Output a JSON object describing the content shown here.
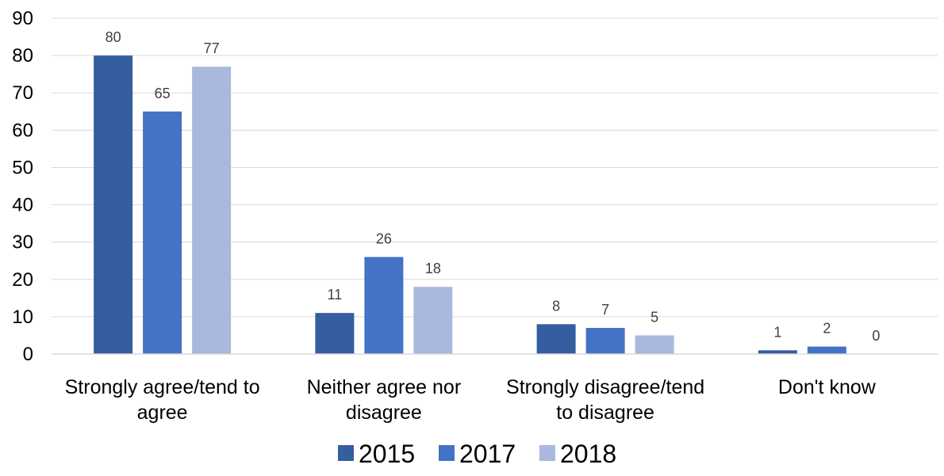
{
  "chart_data": {
    "type": "bar",
    "title": "",
    "xlabel": "",
    "ylabel": "",
    "ylim": [
      0,
      90
    ],
    "yticks": [
      0,
      10,
      20,
      30,
      40,
      50,
      60,
      70,
      80,
      90
    ],
    "grid": true,
    "legend": "bottom",
    "categories": [
      [
        "Strongly agree/tend to",
        "agree"
      ],
      [
        "Neither agree nor",
        "disagree"
      ],
      [
        "Strongly disagree/tend",
        "to disagree"
      ],
      [
        "Don't know"
      ]
    ],
    "series": [
      {
        "name": "2015",
        "color": "#355ea0",
        "values": [
          80,
          11,
          8,
          1
        ]
      },
      {
        "name": "2017",
        "color": "#4472c4",
        "values": [
          65,
          26,
          7,
          2
        ]
      },
      {
        "name": "2018",
        "color": "#a9b8dc",
        "values": [
          77,
          18,
          5,
          0
        ]
      }
    ]
  }
}
